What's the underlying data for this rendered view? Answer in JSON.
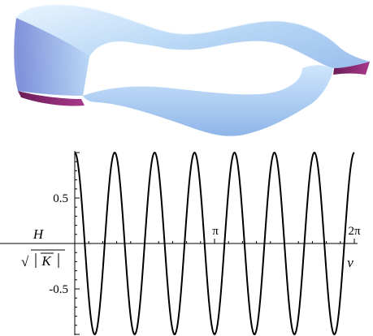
{
  "chart_data": {
    "type": "line",
    "function": "cos(7 v)",
    "x_range": [
      0,
      6.2832
    ],
    "y_range": [
      -1,
      1
    ],
    "series": [
      {
        "color": "#000000"
      }
    ],
    "x_ticks": [
      {
        "value": 3.1416,
        "label": "π"
      },
      {
        "value": 6.2832,
        "label": "2π"
      }
    ],
    "y_ticks": [
      {
        "value": 0.5,
        "label": "0.5"
      },
      {
        "value": -0.5,
        "label": "-0.5"
      }
    ],
    "xlabel": "v",
    "ylabel": {
      "numerator": "H",
      "denominator_inner": "K",
      "sqrt": "√"
    }
  },
  "surface": {
    "colors": {
      "light": "#d9ecfb",
      "mid": "#9fc4ec",
      "dark": "#7f8fd8",
      "under": "#8a2a6e"
    }
  }
}
